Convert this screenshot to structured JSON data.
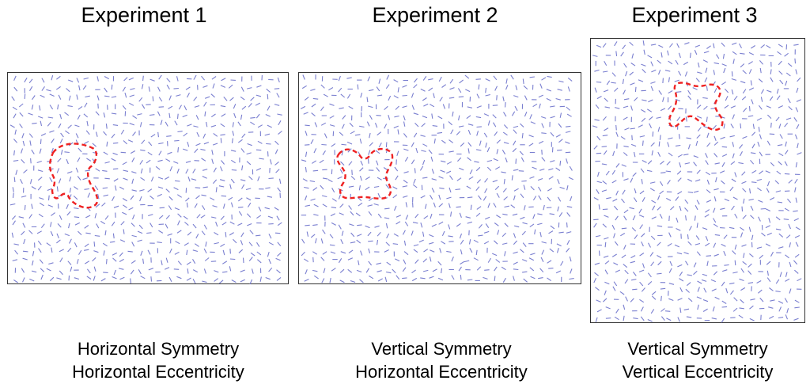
{
  "experiments": [
    {
      "title": "Experiment 1",
      "caption_line1": "Horizontal Symmetry",
      "caption_line2": "Horizontal Eccentricity"
    },
    {
      "title": "Experiment 2",
      "caption_line1": "Vertical Symmetry",
      "caption_line2": "Horizontal Eccentricity"
    },
    {
      "title": "Experiment 3",
      "caption_line1": "Vertical Symmetry",
      "caption_line2": "Vertical Eccentricity"
    }
  ],
  "colors": {
    "texture_line": "#7a7fd0",
    "contour": "#ee2222",
    "frame": "#333333"
  }
}
